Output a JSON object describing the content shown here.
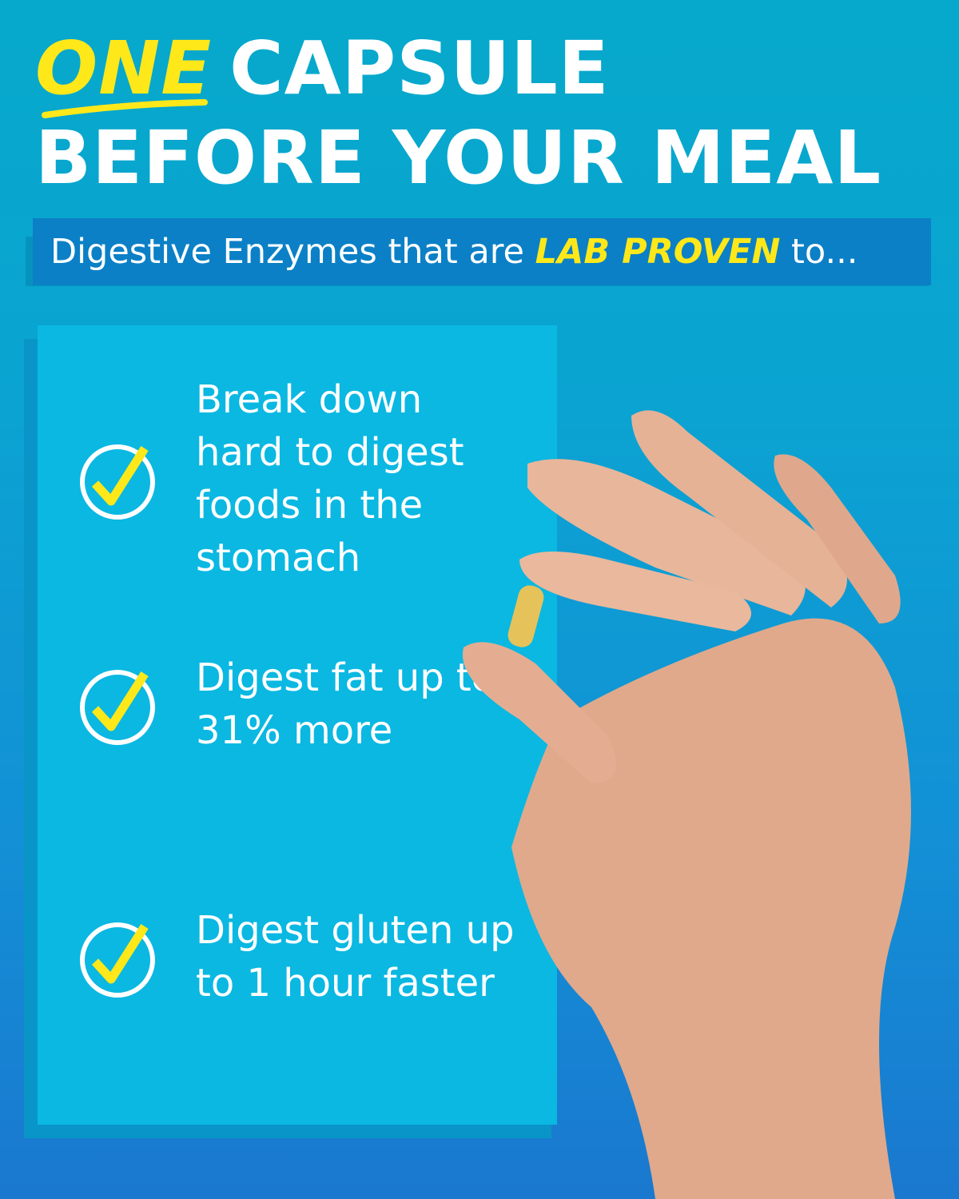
{
  "headline": {
    "emphasis": "ONE",
    "line1_rest": "CAPSULE",
    "line2": "BEFORE YOUR MEAL"
  },
  "banner": {
    "prefix": "Digestive Enzymes that are ",
    "highlight": "LAB PROVEN",
    "suffix": " to..."
  },
  "benefits": [
    {
      "icon": "check-circle-icon",
      "text": "Break down hard to digest foods in the stomach"
    },
    {
      "icon": "check-circle-icon",
      "text": "Digest fat up to 31% more"
    },
    {
      "icon": "check-circle-icon",
      "text": "Digest gluten up to 1 hour faster"
    }
  ],
  "colors": {
    "accent_yellow": "#ffe81a",
    "banner_blue": "#0b80c6",
    "panel_cyan": "#0ab8e2"
  }
}
